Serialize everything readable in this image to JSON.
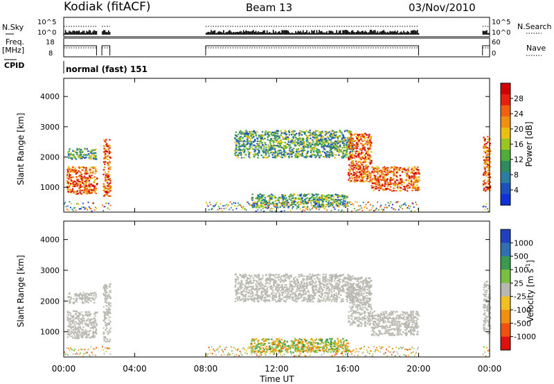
{
  "header": {
    "station": "Kodiak (fitACF)",
    "beam": "Beam 13",
    "date": "03/Nov/2010"
  },
  "noise_panel": {
    "left_label": "N.Sky",
    "right_label": "N.Search",
    "left_ticks": [
      "10^5",
      "10^0"
    ],
    "right_ticks": [
      "10^5",
      "10^0"
    ]
  },
  "freq_panel": {
    "left_label_top": "Freq.",
    "left_label_bottom": "[MHz]",
    "right_label": "Nave",
    "left_ticks": [
      "18",
      "8"
    ],
    "right_ticks": [
      "60",
      "0"
    ]
  },
  "cpid": {
    "label": "CPID",
    "text": "normal (fast) 151"
  },
  "operating_segments": [
    {
      "start": 0.0,
      "end": 1.85
    },
    {
      "start": 2.15,
      "end": 2.6
    },
    {
      "start": 8.0,
      "end": 20.0
    },
    {
      "start": 23.6,
      "end": 24.0
    }
  ],
  "chart_data": [
    {
      "type": "heatmap",
      "name": "power",
      "xlabel": "",
      "ylabel": "Slant Range [km]",
      "xlim": [
        0,
        24
      ],
      "ylim": [
        180,
        4600
      ],
      "y_ticks": [
        "1000",
        "2000",
        "3000",
        "4000"
      ],
      "colorbar": {
        "label": "Power [dB]",
        "ticks": [
          "4",
          "8",
          "12",
          "16",
          "20",
          "24",
          "28"
        ],
        "colors": [
          "#1030d8",
          "#2050c0",
          "#2a7fa0",
          "#2f8a60",
          "#4fae3a",
          "#9ac420",
          "#e8c010",
          "#f09010",
          "#f06010",
          "#e82010",
          "#d00000"
        ]
      },
      "echo_regions": [
        {
          "t0": 0.15,
          "t1": 1.85,
          "r0": 800,
          "r1": 1700,
          "level": "high"
        },
        {
          "t0": 0.2,
          "t1": 1.8,
          "r0": 1950,
          "r1": 2300,
          "level": "medium"
        },
        {
          "t0": 2.2,
          "t1": 2.6,
          "r0": 700,
          "r1": 2600,
          "level": "high"
        },
        {
          "t0": 9.6,
          "t1": 16.3,
          "r0": 2000,
          "r1": 2900,
          "level": "medium"
        },
        {
          "t0": 10.5,
          "t1": 16.0,
          "r0": 350,
          "r1": 800,
          "level": "medium"
        },
        {
          "t0": 16.0,
          "t1": 17.3,
          "r0": 1200,
          "r1": 2800,
          "level": "high"
        },
        {
          "t0": 17.3,
          "t1": 20.0,
          "r0": 900,
          "r1": 1700,
          "level": "high"
        },
        {
          "t0": 23.6,
          "t1": 24.0,
          "r0": 900,
          "r1": 2700,
          "level": "high"
        }
      ]
    },
    {
      "type": "heatmap",
      "name": "velocity",
      "xlabel": "Time UT",
      "ylabel": "Slant Range [km]",
      "xlim": [
        0,
        24
      ],
      "ylim": [
        180,
        4600
      ],
      "x_ticks": [
        "00:00",
        "04:00",
        "08:00",
        "12:00",
        "16:00",
        "20:00",
        "00:00"
      ],
      "y_ticks": [
        "1000",
        "2000",
        "3000",
        "4000"
      ],
      "colorbar": {
        "label": "Velocity  [m s",
        "label_sup": "-1",
        "label_end": "]",
        "ticks": [
          "1000",
          "500",
          "100",
          "25",
          "-25",
          "-100",
          "-500",
          "-1000"
        ],
        "colors": [
          "#2040c0",
          "#3070b0",
          "#3a9a50",
          "#7ac040",
          "#b8b8b0",
          "#f0c020",
          "#f09010",
          "#f05010",
          "#e01010"
        ]
      },
      "echo_regions": [
        {
          "t0": 0.15,
          "t1": 1.85,
          "r0": 800,
          "r1": 1700,
          "level": "ground"
        },
        {
          "t0": 0.2,
          "t1": 1.8,
          "r0": 1950,
          "r1": 2300,
          "level": "ground"
        },
        {
          "t0": 2.2,
          "t1": 2.6,
          "r0": 700,
          "r1": 2600,
          "level": "ground"
        },
        {
          "t0": 9.6,
          "t1": 16.3,
          "r0": 2000,
          "r1": 2900,
          "level": "ground"
        },
        {
          "t0": 10.5,
          "t1": 16.0,
          "r0": 350,
          "r1": 800,
          "level": "flow"
        },
        {
          "t0": 16.0,
          "t1": 17.3,
          "r0": 1200,
          "r1": 2800,
          "level": "ground"
        },
        {
          "t0": 17.3,
          "t1": 20.0,
          "r0": 900,
          "r1": 1700,
          "level": "ground"
        },
        {
          "t0": 23.6,
          "t1": 24.0,
          "r0": 900,
          "r1": 2700,
          "level": "ground"
        }
      ]
    }
  ]
}
